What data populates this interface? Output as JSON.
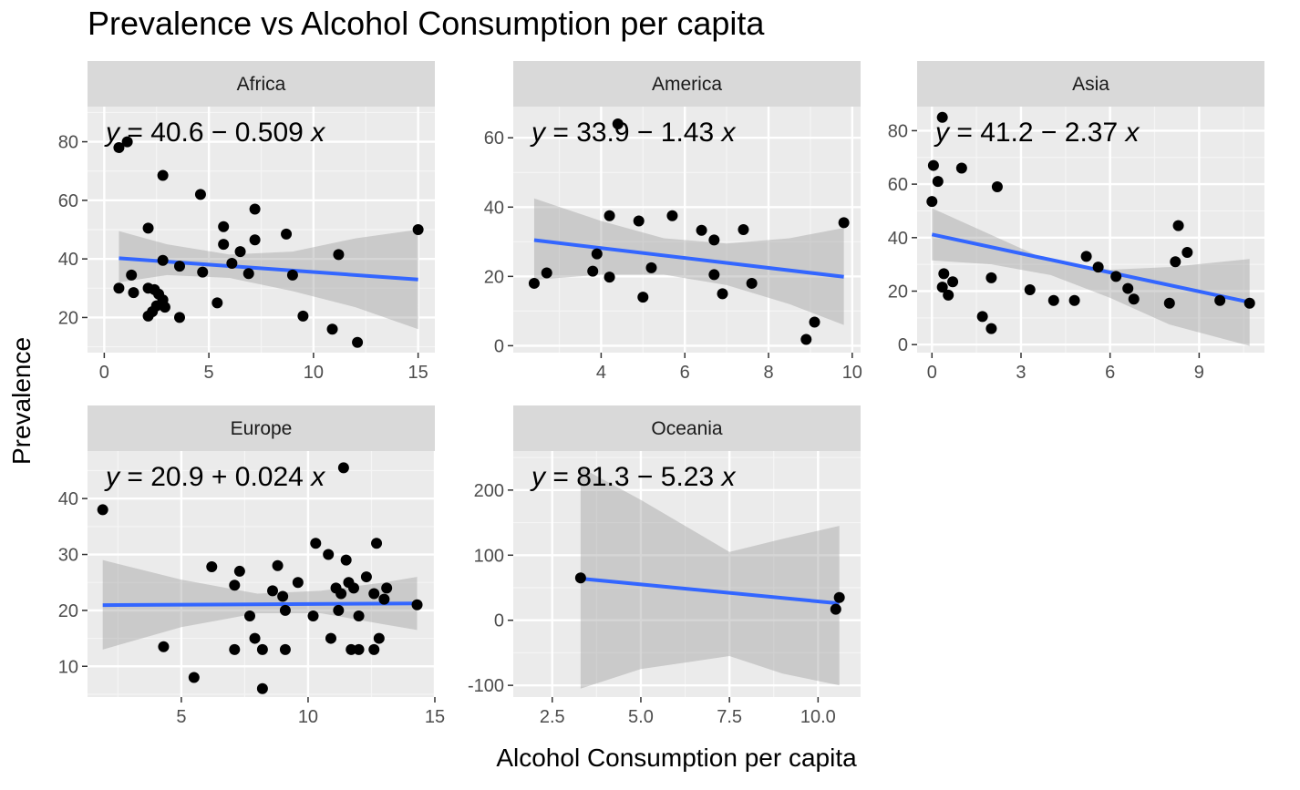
{
  "chart_data": {
    "type": "scatter",
    "title": "Prevalence vs Alcohol Consumption per capita",
    "xlabel": "Alcohol Consumption per capita",
    "ylabel": "Prevalence",
    "grid": true,
    "facets": [
      {
        "name": "Africa",
        "equation": {
          "prefix": "y",
          "rest": " = 40.6 − 0.509 ",
          "var": "x"
        },
        "xlim": [
          -0.8,
          15.8
        ],
        "ylim": [
          8,
          92
        ],
        "xticks": [
          0,
          5,
          10,
          15
        ],
        "yticks": [
          20,
          40,
          60,
          80
        ],
        "points": [
          [
            0.7,
            78
          ],
          [
            1.1,
            80
          ],
          [
            2.8,
            68.5
          ],
          [
            4.6,
            62
          ],
          [
            7.2,
            57
          ],
          [
            2.1,
            50.5
          ],
          [
            5.7,
            51
          ],
          [
            8.7,
            48.5
          ],
          [
            7.2,
            46.5
          ],
          [
            5.7,
            45
          ],
          [
            6.5,
            42.5
          ],
          [
            11.2,
            41.5
          ],
          [
            2.8,
            39.5
          ],
          [
            6.1,
            38.5
          ],
          [
            3.6,
            37.5
          ],
          [
            4.7,
            35.5
          ],
          [
            6.9,
            35
          ],
          [
            1.3,
            34.5
          ],
          [
            9.0,
            34.5
          ],
          [
            0.7,
            30
          ],
          [
            1.4,
            28.5
          ],
          [
            2.1,
            30
          ],
          [
            2.4,
            29.5
          ],
          [
            2.6,
            28
          ],
          [
            2.8,
            26
          ],
          [
            2.5,
            24
          ],
          [
            2.9,
            23.5
          ],
          [
            2.3,
            22
          ],
          [
            2.1,
            20.5
          ],
          [
            3.6,
            20
          ],
          [
            5.4,
            25
          ],
          [
            9.5,
            20.5
          ],
          [
            10.9,
            16
          ],
          [
            12.1,
            11.5
          ],
          [
            15.0,
            50
          ]
        ],
        "fit": {
          "intercept": 40.6,
          "slope": -0.509,
          "xrange": [
            0.7,
            15.0
          ],
          "band": [
            [
              0.7,
              32,
              49.5
            ],
            [
              3,
              34.5,
              45
            ],
            [
              6,
              33.5,
              41.5
            ],
            [
              9,
              29,
              42.5
            ],
            [
              12,
              23.5,
              47
            ],
            [
              15,
              16,
              50
            ]
          ]
        }
      },
      {
        "name": "America",
        "equation": {
          "prefix": "y",
          "rest": " = 33.9 − 1.43 ",
          "var": "x"
        },
        "xlim": [
          1.9,
          10.2
        ],
        "ylim": [
          -2,
          69
        ],
        "xticks": [
          4,
          6,
          8,
          10
        ],
        "yticks": [
          0,
          20,
          40,
          60
        ],
        "points": [
          [
            4.4,
            64
          ],
          [
            4.2,
            37.5
          ],
          [
            4.9,
            36
          ],
          [
            5.7,
            37.5
          ],
          [
            6.4,
            33.3
          ],
          [
            6.7,
            30.5
          ],
          [
            7.4,
            33.5
          ],
          [
            9.8,
            35.5
          ],
          [
            3.9,
            26.5
          ],
          [
            3.8,
            21.5
          ],
          [
            4.2,
            19.8
          ],
          [
            5.2,
            22.5
          ],
          [
            2.7,
            21
          ],
          [
            2.4,
            18
          ],
          [
            5.0,
            14
          ],
          [
            6.7,
            20.5
          ],
          [
            6.9,
            15
          ],
          [
            7.6,
            18
          ],
          [
            9.1,
            6.8
          ],
          [
            8.9,
            1.8
          ]
        ],
        "fit": {
          "intercept": 33.9,
          "slope": -1.43,
          "xrange": [
            2.4,
            9.8
          ],
          "band": [
            [
              2.4,
              19,
              42.5
            ],
            [
              4,
              20.5,
              36
            ],
            [
              5.5,
              20.5,
              31
            ],
            [
              7,
              17.5,
              29.5
            ],
            [
              8.5,
              12,
              31
            ],
            [
              9.8,
              6,
              34
            ]
          ]
        }
      },
      {
        "name": "Asia",
        "equation": {
          "prefix": "y",
          "rest": " = 41.2 − 2.37 ",
          "var": "x"
        },
        "xlim": [
          -0.5,
          11.2
        ],
        "ylim": [
          -3,
          89
        ],
        "xticks": [
          0,
          3,
          6,
          9
        ],
        "yticks": [
          0,
          20,
          40,
          60,
          80
        ],
        "points": [
          [
            0.35,
            85
          ],
          [
            0.05,
            67
          ],
          [
            1.0,
            66
          ],
          [
            0.2,
            61
          ],
          [
            2.2,
            59
          ],
          [
            0.0,
            53.5
          ],
          [
            0.4,
            26.5
          ],
          [
            0.35,
            21.5
          ],
          [
            0.7,
            23.5
          ],
          [
            0.55,
            18.5
          ],
          [
            2.0,
            25
          ],
          [
            1.7,
            10.5
          ],
          [
            2.0,
            6
          ],
          [
            3.3,
            20.5
          ],
          [
            4.1,
            16.5
          ],
          [
            4.8,
            16.5
          ],
          [
            5.2,
            33
          ],
          [
            5.6,
            29
          ],
          [
            6.2,
            25.5
          ],
          [
            6.6,
            21
          ],
          [
            6.8,
            17
          ],
          [
            8.0,
            15.5
          ],
          [
            8.2,
            31
          ],
          [
            8.3,
            44.5
          ],
          [
            8.6,
            34.5
          ],
          [
            9.7,
            16.5
          ],
          [
            10.7,
            15.5
          ]
        ],
        "fit": {
          "intercept": 41.2,
          "slope": -2.37,
          "xrange": [
            0.0,
            10.7
          ],
          "band": [
            [
              0,
              31.5,
              51
            ],
            [
              2,
              30,
              41
            ],
            [
              4,
              26,
              31
            ],
            [
              6,
              17.5,
              28
            ],
            [
              8,
              7.5,
              29
            ],
            [
              10.7,
              -0.5,
              32
            ]
          ]
        }
      },
      {
        "name": "Europe",
        "equation": {
          "prefix": "y",
          "rest": " = 20.9 + 0.024 ",
          "var": "x"
        },
        "xlim": [
          1.3,
          15.0
        ],
        "ylim": [
          4.5,
          48.5
        ],
        "xticks": [
          5,
          10,
          15
        ],
        "yticks": [
          10,
          20,
          30,
          40
        ],
        "points": [
          [
            1.9,
            38
          ],
          [
            11.4,
            45.5
          ],
          [
            4.3,
            13.5
          ],
          [
            5.5,
            8
          ],
          [
            6.2,
            27.8
          ],
          [
            7.1,
            24.5
          ],
          [
            7.3,
            27
          ],
          [
            7.1,
            13
          ],
          [
            7.7,
            19
          ],
          [
            7.9,
            15
          ],
          [
            8.2,
            13
          ],
          [
            8.2,
            6
          ],
          [
            8.6,
            23.5
          ],
          [
            8.8,
            28
          ],
          [
            9.0,
            22.5
          ],
          [
            9.1,
            20
          ],
          [
            9.1,
            13
          ],
          [
            9.6,
            25
          ],
          [
            10.2,
            19
          ],
          [
            10.3,
            32
          ],
          [
            10.8,
            30
          ],
          [
            10.9,
            15
          ],
          [
            11.1,
            24
          ],
          [
            11.2,
            20
          ],
          [
            11.3,
            23
          ],
          [
            11.5,
            29
          ],
          [
            11.6,
            25
          ],
          [
            11.8,
            24
          ],
          [
            11.7,
            13
          ],
          [
            12.0,
            19
          ],
          [
            12.0,
            13
          ],
          [
            12.3,
            26
          ],
          [
            12.6,
            23
          ],
          [
            12.7,
            32
          ],
          [
            12.8,
            15
          ],
          [
            12.6,
            13
          ],
          [
            13.0,
            22
          ],
          [
            13.1,
            24
          ],
          [
            14.3,
            21
          ]
        ],
        "fit": {
          "intercept": 20.9,
          "slope": 0.024,
          "xrange": [
            1.9,
            14.3
          ],
          "band": [
            [
              1.9,
              13,
              29
            ],
            [
              5,
              17,
              25.5
            ],
            [
              8,
              19.5,
              23
            ],
            [
              10.5,
              19.5,
              23.5
            ],
            [
              13,
              17.5,
              25
            ],
            [
              14.3,
              16.5,
              26
            ]
          ]
        }
      },
      {
        "name": "Oceania",
        "equation": {
          "prefix": "y",
          "rest": " = 81.3 − 5.23 ",
          "var": "x"
        },
        "xlim": [
          1.4,
          11.2
        ],
        "ylim": [
          -118,
          260
        ],
        "xticks": [
          2.5,
          5.0,
          7.5,
          10.0
        ],
        "yticks": [
          -100,
          0,
          100,
          200
        ],
        "points": [
          [
            3.3,
            65
          ],
          [
            10.5,
            17
          ],
          [
            10.6,
            35
          ]
        ],
        "fit": {
          "intercept": 81.3,
          "slope": -5.23,
          "xrange": [
            3.3,
            10.6
          ],
          "band": [
            [
              3.3,
              -105,
              235
            ],
            [
              5,
              -75,
              185
            ],
            [
              7.5,
              -55,
              105
            ],
            [
              9,
              -82,
              125
            ],
            [
              10.6,
              -100,
              145
            ]
          ]
        }
      }
    ]
  }
}
